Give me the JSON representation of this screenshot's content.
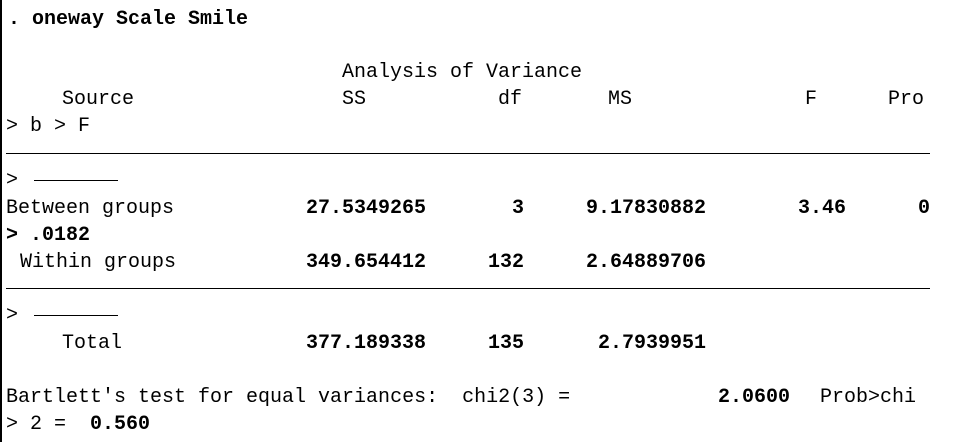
{
  "command": ". oneway Scale Smile",
  "table": {
    "title": "Analysis of Variance",
    "headers": {
      "source": "Source",
      "ss": "SS",
      "df": "df",
      "ms": "MS",
      "f": "F",
      "prob": "Pro"
    },
    "wrap_header": "> b > F",
    "dash_prefix": ">",
    "rows": [
      {
        "label": "Between groups",
        "ss": "27.5349265",
        "df": "3",
        "ms": "9.17830882",
        "f": "3.46",
        "prob": "0",
        "wrap": "> .0182"
      },
      {
        "label": "Within groups",
        "ss": "349.654412",
        "df": "132",
        "ms": "2.64889706"
      }
    ],
    "total": {
      "label": "Total",
      "ss": "377.189338",
      "df": "135",
      "ms": "2.7939951"
    }
  },
  "bartlett": {
    "text": "Bartlett's test for equal variances:  chi2(3) = ",
    "value": "2.0600",
    "prob_label": "Prob>chi",
    "wrap_prefix": "> 2 = ",
    "prob_value": "0.560"
  }
}
